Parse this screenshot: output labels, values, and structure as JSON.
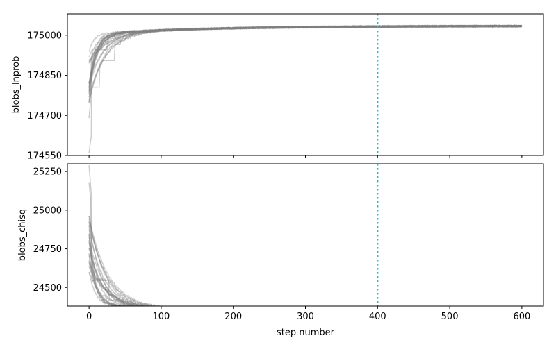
{
  "chart_data": [
    {
      "type": "line",
      "title": "",
      "ylabel": "blobs_lnprob",
      "xlabel": "",
      "xlim": [
        -30,
        630
      ],
      "ylim": [
        174550,
        175080
      ],
      "xticks": [
        0,
        100,
        200,
        300,
        400,
        500,
        600
      ],
      "yticks": [
        174550,
        174700,
        174850,
        175000
      ],
      "show_x_tick_labels": false,
      "series_color": "#808080",
      "series_alpha": 0.4,
      "walkers": 24,
      "steps": 600,
      "trend": {
        "start": 174880,
        "plateau": 175035,
        "min": 174560
      },
      "vline": {
        "x": 400,
        "color": "#17becf",
        "style": "dotted"
      }
    },
    {
      "type": "line",
      "title": "",
      "ylabel": "blobs_chisq",
      "xlabel": "step number",
      "xlim": [
        -30,
        630
      ],
      "ylim": [
        24380,
        25300
      ],
      "xticks": [
        0,
        100,
        200,
        300,
        400,
        500,
        600
      ],
      "yticks": [
        24500,
        24750,
        25000,
        25250
      ],
      "show_x_tick_labels": true,
      "series_color": "#808080",
      "series_alpha": 0.4,
      "walkers": 24,
      "steps": 600,
      "trend": {
        "start": 24720,
        "plateau": 24332,
        "max": 25290
      },
      "vline": {
        "x": 400,
        "color": "#17becf",
        "style": "dotted"
      }
    }
  ]
}
